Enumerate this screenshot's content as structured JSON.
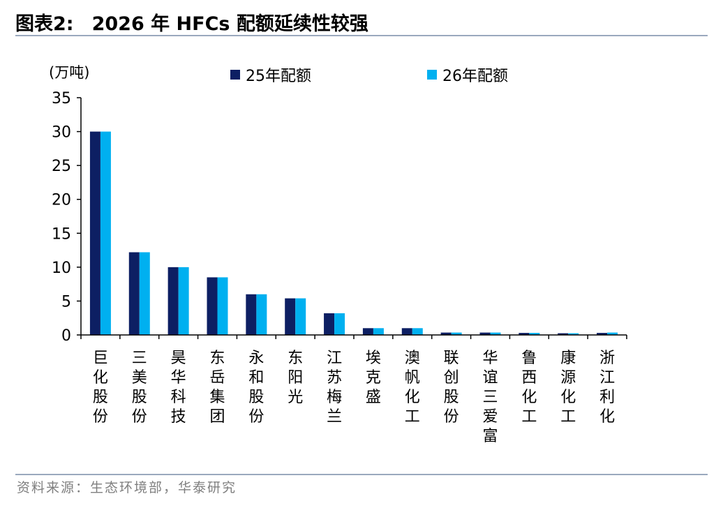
{
  "figure": {
    "number_label": "图表2:",
    "title": "2026 年 HFCs 配额延续性较强",
    "source": "资料来源：生态环境部，华泰研究"
  },
  "colors": {
    "series_25": "#0d1f63",
    "series_26": "#00b0f0",
    "axis": "#000000",
    "rule": "#9aa8bd",
    "source_text": "#7f7f7f"
  },
  "chart_data": {
    "type": "bar",
    "ylabel": "(万吨)",
    "ylim": [
      0,
      35
    ],
    "yticks": [
      0,
      5,
      10,
      15,
      20,
      25,
      30,
      35
    ],
    "grid": false,
    "legend_position": "top",
    "categories": [
      "巨化股份",
      "三美股份",
      "昊华科技",
      "东岳集团",
      "永和股份",
      "东阳光",
      "江苏梅兰",
      "埃克盛",
      "澳帆化工",
      "联创股份",
      "华谊三爱富",
      "鲁西化工",
      "康源化工",
      "浙江利化"
    ],
    "series": [
      {
        "name": "25年配额",
        "values": [
          30.0,
          12.2,
          10.0,
          8.5,
          6.0,
          5.4,
          3.2,
          1.0,
          1.0,
          0.35,
          0.35,
          0.3,
          0.25,
          0.3
        ]
      },
      {
        "name": "26年配额",
        "values": [
          30.0,
          12.2,
          10.0,
          8.5,
          6.0,
          5.4,
          3.2,
          1.0,
          1.0,
          0.35,
          0.35,
          0.3,
          0.25,
          0.35
        ]
      }
    ]
  }
}
